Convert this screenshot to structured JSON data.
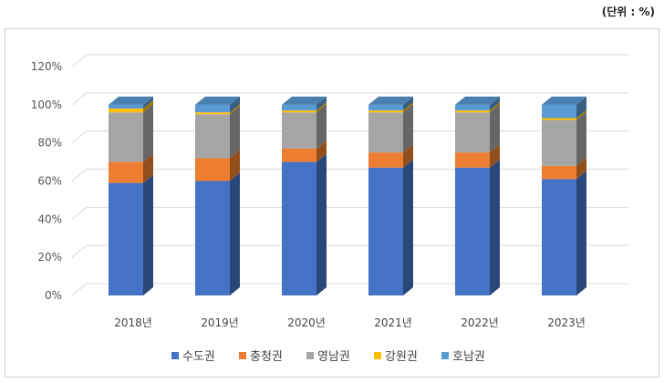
{
  "unit_label": "(단위 : %)",
  "chart_data": {
    "type": "bar",
    "stacked": true,
    "style": "3d-column",
    "categories": [
      "2018년",
      "2019년",
      "2020년",
      "2021년",
      "2022년",
      "2023년"
    ],
    "yticks": [
      "0%",
      "20%",
      "40%",
      "60%",
      "80%",
      "100%",
      "120%"
    ],
    "ylim": [
      0,
      120
    ],
    "grid": true,
    "legend_position": "bottom",
    "series": [
      {
        "name": "수도권",
        "color": "#4472C4",
        "values": [
          59,
          60,
          70,
          67,
          67,
          61
        ]
      },
      {
        "name": "충청권",
        "color": "#ED7D31",
        "values": [
          11,
          12,
          7,
          8,
          8,
          7
        ]
      },
      {
        "name": "영남권",
        "color": "#A5A5A5",
        "values": [
          26,
          23,
          19,
          21,
          21,
          24
        ]
      },
      {
        "name": "강원권",
        "color": "#FFC000",
        "values": [
          2,
          1,
          1,
          1,
          1,
          1
        ]
      },
      {
        "name": "호남권",
        "color": "#5B9BD5",
        "values": [
          2,
          4,
          3,
          3,
          3,
          7
        ]
      }
    ]
  }
}
